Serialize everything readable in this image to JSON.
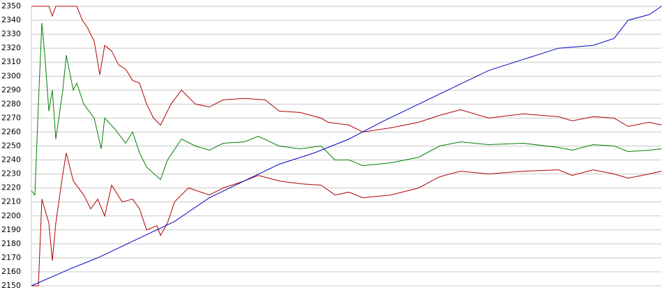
{
  "chart_data": {
    "type": "line",
    "ylim": [
      2150,
      2350
    ],
    "yticks": [
      2150,
      2160,
      2170,
      2180,
      2190,
      2200,
      2210,
      2220,
      2230,
      2240,
      2250,
      2260,
      2270,
      2280,
      2290,
      2300,
      2310,
      2320,
      2330,
      2340,
      2350
    ],
    "xlim": [
      0,
      903
    ],
    "grid": true,
    "series": [
      {
        "color": "#b00000",
        "x": [
          0,
          15,
          25,
          30,
          35,
          65,
          73,
          80,
          90,
          98,
          105,
          115,
          125,
          135,
          145,
          155,
          165,
          175,
          185,
          200,
          215,
          235,
          255,
          275,
          305,
          335,
          355,
          385,
          415,
          425,
          455,
          475,
          515,
          555,
          585,
          615,
          655,
          705,
          755,
          775,
          805,
          835,
          855,
          885,
          903
        ],
        "values": [
          2350,
          2350,
          2350,
          2343,
          2350,
          2350,
          2340,
          2335,
          2325,
          2301,
          2322,
          2318,
          2308,
          2305,
          2297,
          2295,
          2280,
          2270,
          2265,
          2280,
          2290,
          2280,
          2278,
          2283,
          2284,
          2283,
          2275,
          2274,
          2270,
          2267,
          2265,
          2260,
          2263,
          2267,
          2272,
          2276,
          2270,
          2273,
          2271,
          2268,
          2271,
          2270,
          2264,
          2267,
          2265
        ]
      },
      {
        "color": "#008000",
        "x": [
          0,
          5,
          10,
          15,
          20,
          25,
          30,
          35,
          45,
          50,
          60,
          65,
          75,
          90,
          100,
          105,
          120,
          135,
          145,
          155,
          165,
          185,
          195,
          215,
          235,
          255,
          275,
          305,
          325,
          355,
          385,
          415,
          435,
          455,
          475,
          515,
          555,
          585,
          615,
          655,
          705,
          755,
          775,
          805,
          835,
          855,
          885,
          903
        ],
        "values": [
          2218,
          2215,
          2280,
          2338,
          2310,
          2275,
          2290,
          2255,
          2290,
          2315,
          2290,
          2295,
          2280,
          2270,
          2248,
          2270,
          2262,
          2252,
          2260,
          2245,
          2235,
          2226,
          2240,
          2255,
          2250,
          2247,
          2252,
          2253,
          2257,
          2250,
          2248,
          2250,
          2240,
          2240,
          2236,
          2238,
          2242,
          2250,
          2253,
          2251,
          2252,
          2249,
          2247,
          2251,
          2250,
          2246,
          2247,
          2248
        ]
      },
      {
        "color": "#b00000",
        "x": [
          0,
          10,
          15,
          25,
          30,
          35,
          45,
          50,
          60,
          75,
          85,
          95,
          105,
          115,
          130,
          145,
          155,
          165,
          180,
          185,
          195,
          205,
          225,
          255,
          275,
          305,
          325,
          355,
          385,
          415,
          435,
          455,
          475,
          515,
          555,
          585,
          615,
          655,
          705,
          755,
          775,
          805,
          835,
          855,
          885,
          903
        ],
        "values": [
          2150,
          2150,
          2212,
          2195,
          2168,
          2195,
          2230,
          2245,
          2225,
          2215,
          2205,
          2212,
          2200,
          2222,
          2210,
          2212,
          2205,
          2190,
          2193,
          2186,
          2195,
          2210,
          2220,
          2215,
          2220,
          2225,
          2229,
          2225,
          2223,
          2222,
          2215,
          2217,
          2213,
          2215,
          2220,
          2228,
          2232,
          2230,
          2232,
          2233,
          2229,
          2233,
          2230,
          2227,
          2230,
          2232
        ]
      },
      {
        "color": "#0000c0",
        "x": [
          0,
          55,
          95,
          150,
          205,
          255,
          305,
          355,
          405,
          455,
          505,
          555,
          605,
          655,
          705,
          755,
          805,
          835,
          855,
          885,
          903
        ],
        "values": [
          2150,
          2162,
          2170,
          2183,
          2196,
          2213,
          2225,
          2237,
          2245,
          2255,
          2268,
          2280,
          2292,
          2304,
          2312,
          2320,
          2322,
          2327,
          2340,
          2344,
          2350
        ]
      }
    ]
  }
}
